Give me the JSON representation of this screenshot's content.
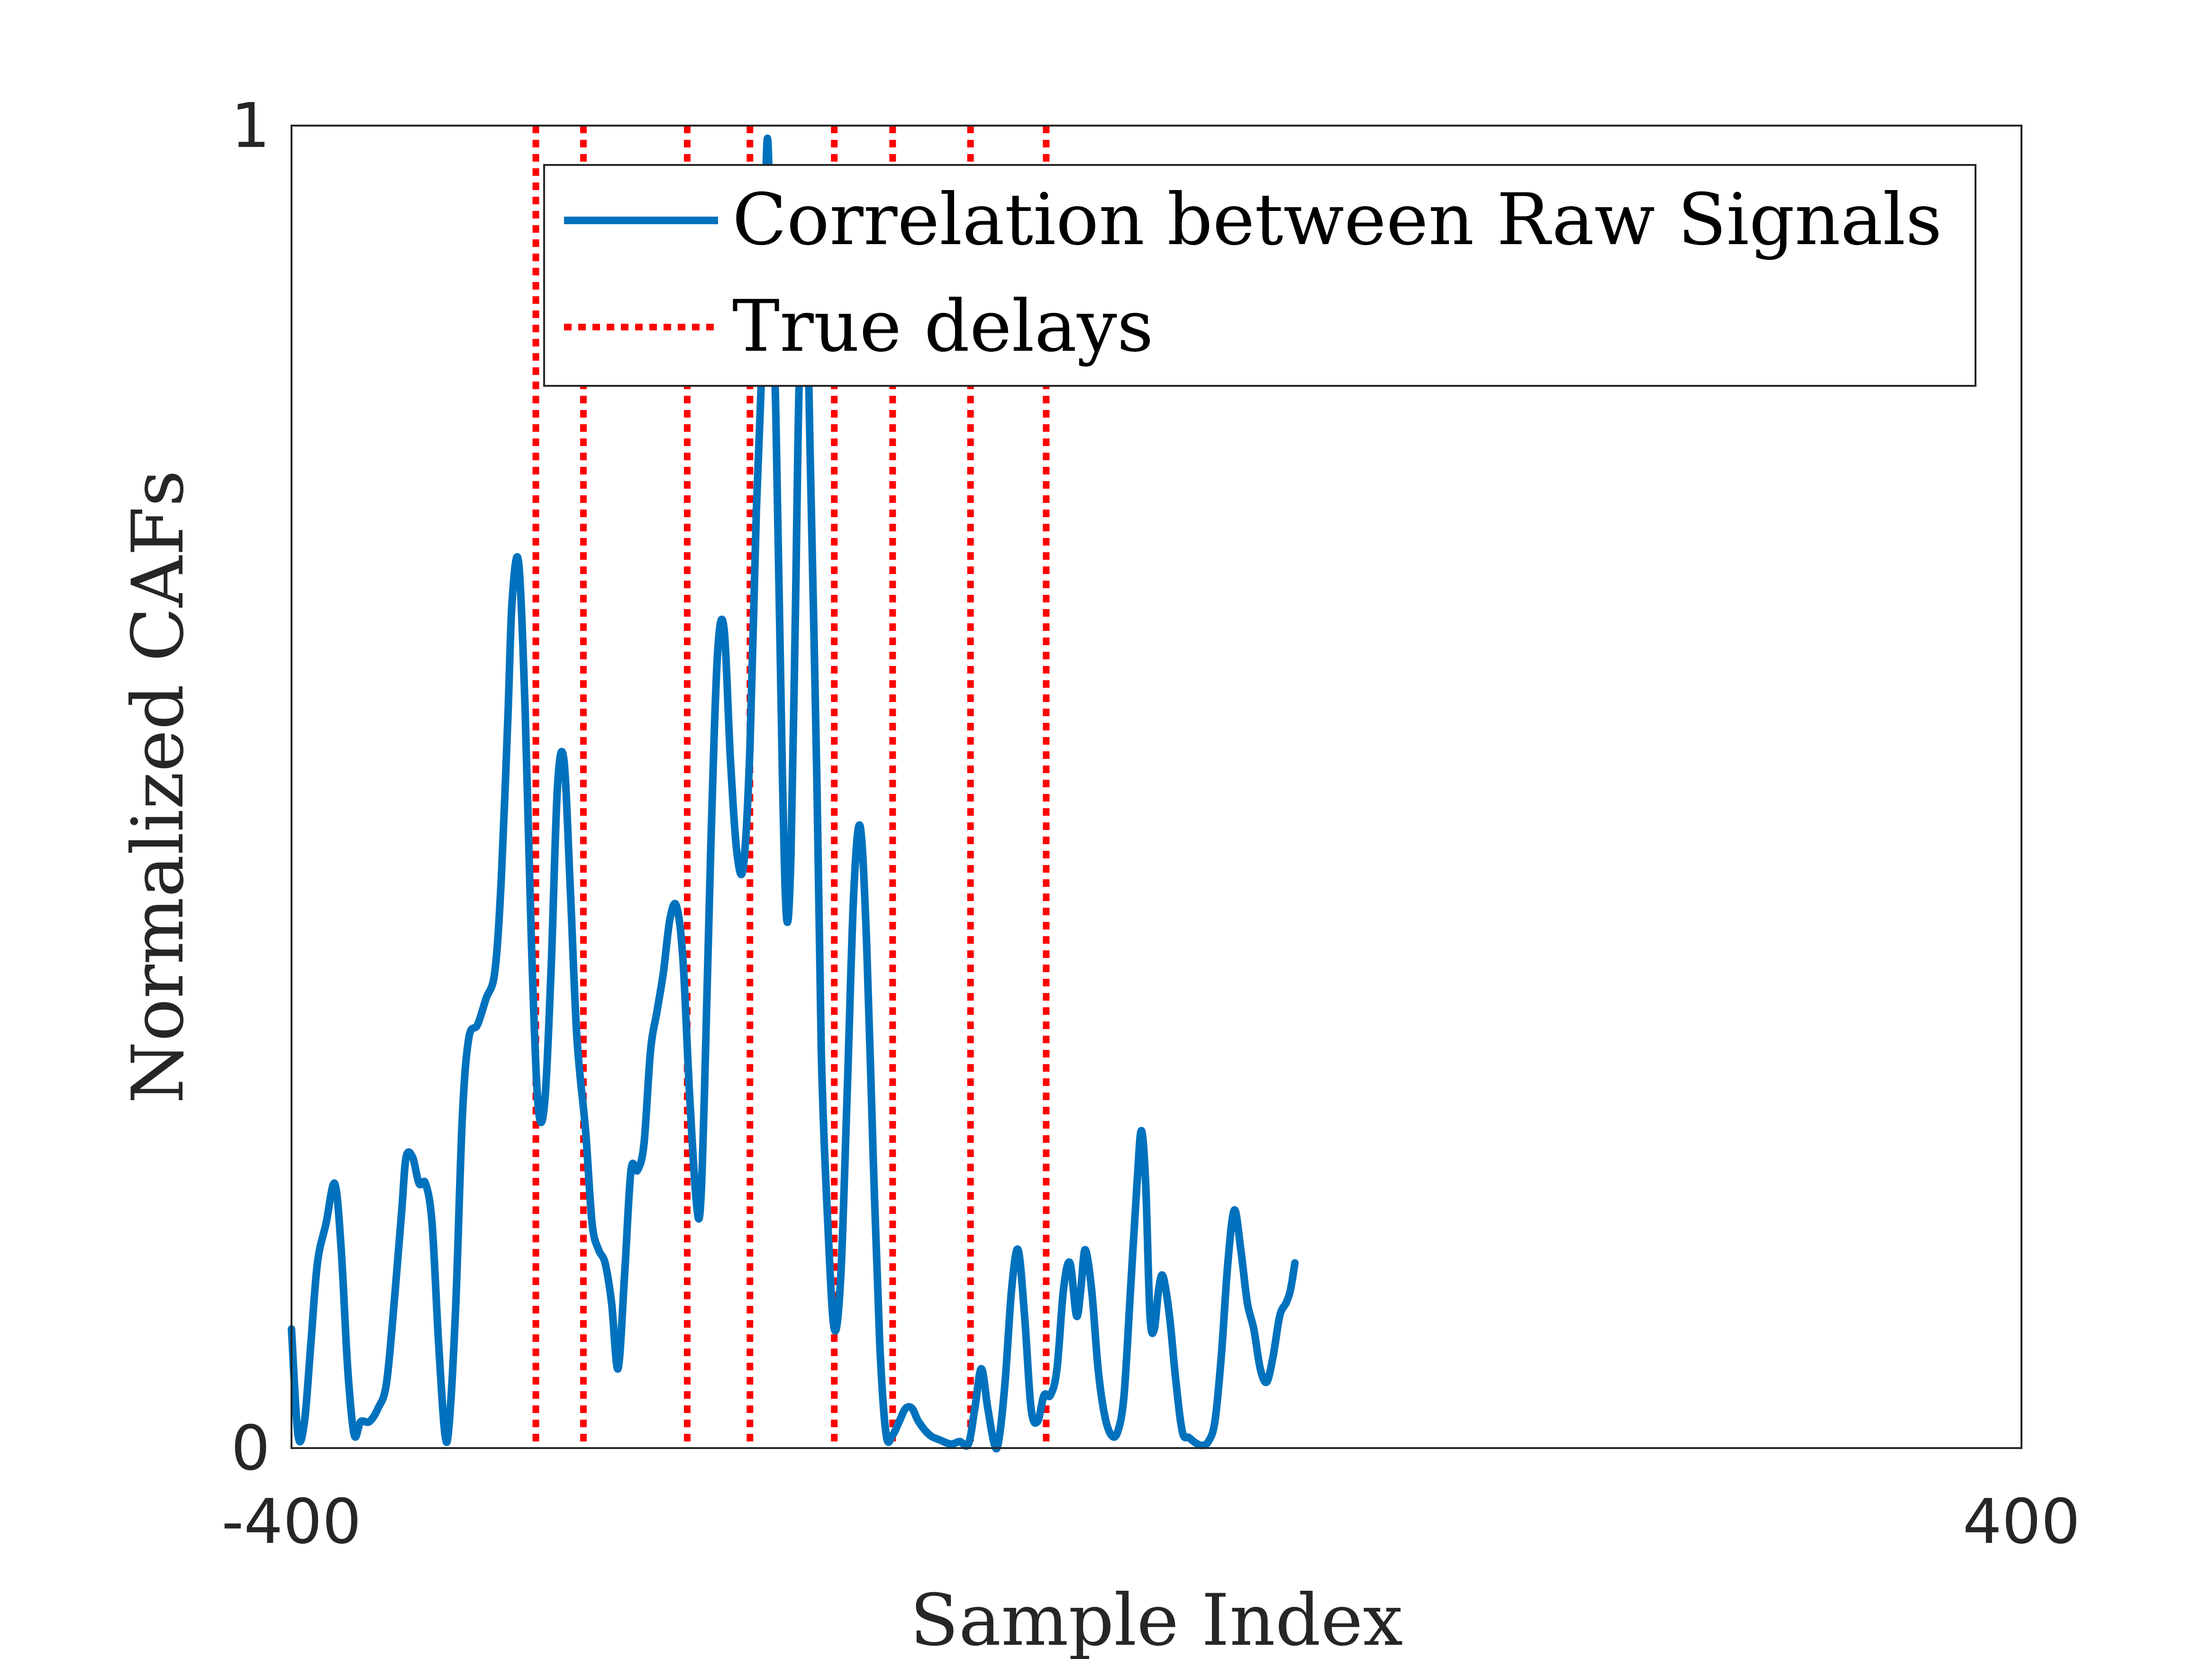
{
  "chart_data": {
    "type": "line",
    "xlabel": "Sample Index",
    "ylabel": "Normalized CAFs",
    "xlim": [
      -400,
      400
    ],
    "ylim": [
      0,
      1
    ],
    "x_ticks": [
      "-400",
      "400"
    ],
    "y_ticks": [
      "0",
      "1"
    ],
    "grid": false,
    "legend_position": "top-right",
    "series": [
      {
        "name": "Correlation between Raw Signals",
        "color": "#0072BD",
        "style": "solid",
        "points": [
          [
            -400,
            0.09
          ],
          [
            -397,
            0.01
          ],
          [
            -394,
            0.02
          ],
          [
            -391,
            0.08
          ],
          [
            -388,
            0.14
          ],
          [
            -384,
            0.17
          ],
          [
            -380,
            0.2
          ],
          [
            -377,
            0.15
          ],
          [
            -374,
            0.06
          ],
          [
            -371,
            0.01
          ],
          [
            -368,
            0.02
          ],
          [
            -364,
            0.02
          ],
          [
            -360,
            0.03
          ],
          [
            -356,
            0.05
          ],
          [
            -352,
            0.12
          ],
          [
            -349,
            0.18
          ],
          [
            -347,
            0.22
          ],
          [
            -344,
            0.22
          ],
          [
            -341,
            0.2
          ],
          [
            -338,
            0.2
          ],
          [
            -335,
            0.17
          ],
          [
            -332,
            0.08
          ],
          [
            -329,
            0.01
          ],
          [
            -327,
            0.02
          ],
          [
            -324,
            0.11
          ],
          [
            -321,
            0.25
          ],
          [
            -318,
            0.31
          ],
          [
            -314,
            0.32
          ],
          [
            -310,
            0.34
          ],
          [
            -306,
            0.36
          ],
          [
            -303,
            0.43
          ],
          [
            -300,
            0.55
          ],
          [
            -298,
            0.64
          ],
          [
            -295,
            0.67
          ],
          [
            -292,
            0.56
          ],
          [
            -289,
            0.38
          ],
          [
            -286,
            0.26
          ],
          [
            -283,
            0.26
          ],
          [
            -280,
            0.36
          ],
          [
            -277,
            0.5
          ],
          [
            -274,
            0.52
          ],
          [
            -271,
            0.42
          ],
          [
            -268,
            0.31
          ],
          [
            -264,
            0.24
          ],
          [
            -261,
            0.17
          ],
          [
            -258,
            0.15
          ],
          [
            -255,
            0.14
          ],
          [
            -252,
            0.11
          ],
          [
            -249,
            0.06
          ],
          [
            -246,
            0.13
          ],
          [
            -243,
            0.21
          ],
          [
            -240,
            0.21
          ],
          [
            -237,
            0.23
          ],
          [
            -234,
            0.3
          ],
          [
            -231,
            0.33
          ],
          [
            -228,
            0.36
          ],
          [
            -225,
            0.4
          ],
          [
            -222,
            0.41
          ],
          [
            -219,
            0.37
          ],
          [
            -216,
            0.27
          ],
          [
            -213,
            0.19
          ],
          [
            -211,
            0.18
          ],
          [
            -209,
            0.27
          ],
          [
            -206,
            0.46
          ],
          [
            -203,
            0.6
          ],
          [
            -200,
            0.62
          ],
          [
            -197,
            0.52
          ],
          [
            -194,
            0.45
          ],
          [
            -191,
            0.44
          ],
          [
            -188,
            0.53
          ],
          [
            -185,
            0.71
          ],
          [
            -182,
            0.84
          ],
          [
            -180,
            0.99
          ],
          [
            -178,
            0.88
          ],
          [
            -176,
            0.78
          ],
          [
            -173,
            0.51
          ],
          [
            -171,
            0.4
          ],
          [
            -169,
            0.45
          ],
          [
            -167,
            0.63
          ],
          [
            -165,
            0.82
          ],
          [
            -162,
            0.87
          ],
          [
            -160,
            0.74
          ],
          [
            -157,
            0.5
          ],
          [
            -155,
            0.3
          ],
          [
            -152,
            0.17
          ],
          [
            -149,
            0.09
          ],
          [
            -146,
            0.13
          ],
          [
            -143,
            0.27
          ],
          [
            -140,
            0.42
          ],
          [
            -137,
            0.47
          ],
          [
            -134,
            0.38
          ],
          [
            -131,
            0.22
          ],
          [
            -128,
            0.08
          ],
          [
            -125,
            0.01
          ],
          [
            -122,
            0.01
          ],
          [
            -119,
            0.02
          ],
          [
            -116,
            0.03
          ],
          [
            -113,
            0.03
          ],
          [
            -110,
            0.02
          ],
          [
            -105,
            0.01
          ],
          [
            -100,
            0.006
          ],
          [
            -95,
            0.003
          ],
          [
            -91,
            0.005
          ],
          [
            -87,
            0.003
          ],
          [
            -84,
            0.03
          ],
          [
            -81,
            0.06
          ],
          [
            -78,
            0.03
          ],
          [
            -75,
            0.003
          ],
          [
            -73,
            0.005
          ],
          [
            -70,
            0.05
          ],
          [
            -67,
            0.12
          ],
          [
            -64,
            0.15
          ],
          [
            -61,
            0.1
          ],
          [
            -58,
            0.03
          ],
          [
            -55,
            0.02
          ],
          [
            -52,
            0.04
          ],
          [
            -49,
            0.04
          ],
          [
            -46,
            0.06
          ],
          [
            -43,
            0.12
          ],
          [
            -40,
            0.14
          ],
          [
            -37,
            0.1
          ],
          [
            -35,
            0.12
          ],
          [
            -33,
            0.15
          ],
          [
            -30,
            0.12
          ],
          [
            -27,
            0.06
          ],
          [
            -24,
            0.025
          ],
          [
            -21,
            0.01
          ],
          [
            -18,
            0.012
          ],
          [
            -15,
            0.04
          ],
          [
            -12,
            0.12
          ],
          [
            -9,
            0.2
          ],
          [
            -7,
            0.24
          ],
          [
            -5,
            0.2
          ],
          [
            -3,
            0.1
          ],
          [
            -1,
            0.09
          ],
          [
            1,
            0.12
          ],
          [
            3,
            0.13
          ],
          [
            6,
            0.1
          ],
          [
            9,
            0.05
          ],
          [
            12,
            0.012
          ],
          [
            15,
            0.008
          ],
          [
            18,
            0.004
          ],
          [
            21,
            0.002
          ],
          [
            24,
            0.005
          ],
          [
            27,
            0.02
          ],
          [
            30,
            0.07
          ],
          [
            33,
            0.14
          ],
          [
            36,
            0.18
          ],
          [
            39,
            0.15
          ],
          [
            42,
            0.11
          ],
          [
            45,
            0.09
          ],
          [
            48,
            0.06
          ],
          [
            51,
            0.05
          ],
          [
            54,
            0.07
          ],
          [
            57,
            0.1
          ],
          [
            60,
            0.11
          ],
          [
            62,
            0.12
          ],
          [
            64,
            0.14
          ]
        ]
      },
      {
        "name": "True delays",
        "color": "#FF0000",
        "style": "dotted",
        "x_positions": [
          -287,
          -265,
          -217,
          -188,
          -149,
          -122,
          -86,
          -51
        ]
      }
    ]
  }
}
